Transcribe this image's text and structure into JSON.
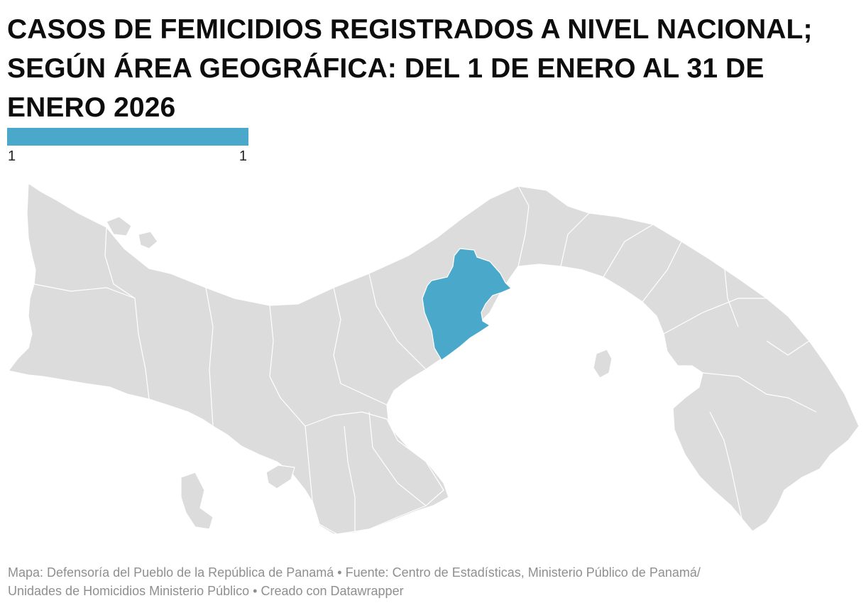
{
  "title": "CASOS DE FEMICIDIOS REGISTRADOS A NIVEL NACIONAL; SEGÚN ÁREA GEOGRÁFICA: DEL 1 DE ENERO AL 31 DE ENERO 2026",
  "legend": {
    "min_label": "1",
    "max_label": "1",
    "color": "#4aa9cb"
  },
  "map": {
    "base_color": "#dcdcdc",
    "border_color": "#ffffff",
    "highlighted_region": {
      "value": 1,
      "color": "#4aa9cb"
    }
  },
  "footer": {
    "line1": "Mapa: Defensoría del Pueblo de la República de Panamá • Fuente: Centro de Estadísticas, Ministerio Público de Panamá/",
    "line2": "Unidades de Homicidios Ministerio Público • Creado con Datawrapper"
  }
}
